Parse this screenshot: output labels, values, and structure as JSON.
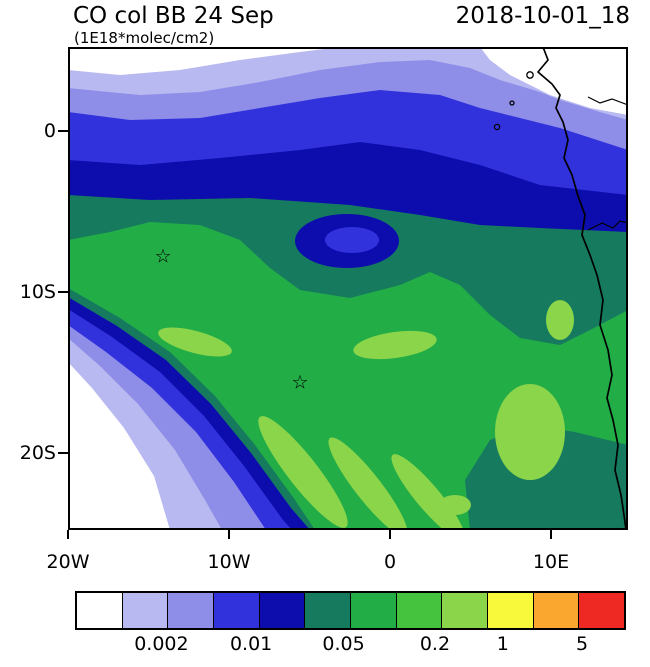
{
  "header": {
    "title": "CO col BB 24 Sep",
    "units": "(1E18*molec/cm2)",
    "date_label": "2018-10-01_18"
  },
  "axes": {
    "y_ticks": [
      {
        "label": "0"
      },
      {
        "label": "10S"
      },
      {
        "label": "20S"
      }
    ],
    "x_ticks": [
      {
        "label": "20W"
      },
      {
        "label": "10W"
      },
      {
        "label": "0"
      },
      {
        "label": "10E"
      }
    ]
  },
  "palette": {
    "frame_color": "#000000",
    "colors": [
      "#ffffff",
      "#b9b9f1",
      "#8e8ee8",
      "#3232dd",
      "#0d0dae",
      "#157a5e",
      "#22ad47",
      "#45c23e",
      "#8bd54a",
      "#f9f93c",
      "#f9a72e",
      "#ee2822"
    ]
  },
  "colorbar": {
    "ticks": [
      {
        "label": "0.002",
        "pos": 0.158
      },
      {
        "label": "0.01",
        "pos": 0.322
      },
      {
        "label": "0.05",
        "pos": 0.491
      },
      {
        "label": "0.2",
        "pos": 0.658
      },
      {
        "label": "1",
        "pos": 0.782
      },
      {
        "label": "5",
        "pos": 0.927
      }
    ]
  },
  "markers": [
    {
      "glyph": "☆"
    },
    {
      "glyph": "☆"
    }
  ],
  "chart_data": {
    "type": "heatmap",
    "title": "CO col BB 24 Sep",
    "units": "1E18*molec/cm2",
    "timestamp_label": "2018-10-01_18",
    "projection": "lat-lon filled-contour map of the tropical South Atlantic and West/Central African coast",
    "lon_range_deg": [
      -20,
      15
    ],
    "lat_range_deg": [
      -25,
      5.2
    ],
    "x_tick_labels": [
      "20W",
      "10W",
      "0",
      "10E"
    ],
    "y_tick_labels": [
      "0",
      "10S",
      "20S"
    ],
    "contour_levels": [
      0.002,
      0.005,
      0.01,
      0.02,
      0.05,
      0.1,
      0.2,
      0.5,
      1,
      2,
      5
    ],
    "colorbar_labels": [
      "0.002",
      "0.01",
      "0.05",
      "0.2",
      "1",
      "5"
    ],
    "palette_hex": [
      "#ffffff",
      "#b9b9f1",
      "#8e8ee8",
      "#3232dd",
      "#0d0dae",
      "#157a5e",
      "#22ad47",
      "#45c23e",
      "#8bd54a",
      "#f9f93c",
      "#f9a72e",
      "#ee2822"
    ],
    "markers": [
      {
        "symbol": "star",
        "lon_deg": -14.2,
        "lat_deg": -7.9
      },
      {
        "symbol": "star",
        "lon_deg": -5.6,
        "lat_deg": -15.9
      }
    ],
    "field_summary": "Low CO column (<0.01) north of the equator and in the far southwest corner; banded blue-to-teal gradient across the north; broad green 0.05-0.2 plume over the tropical South Atlantic with a localized blue minimum near 1S 3W; lighter-green enhanced streaks in the south-central basin and near the Angolan coast; teal values hugging the coast in the southeast."
  }
}
